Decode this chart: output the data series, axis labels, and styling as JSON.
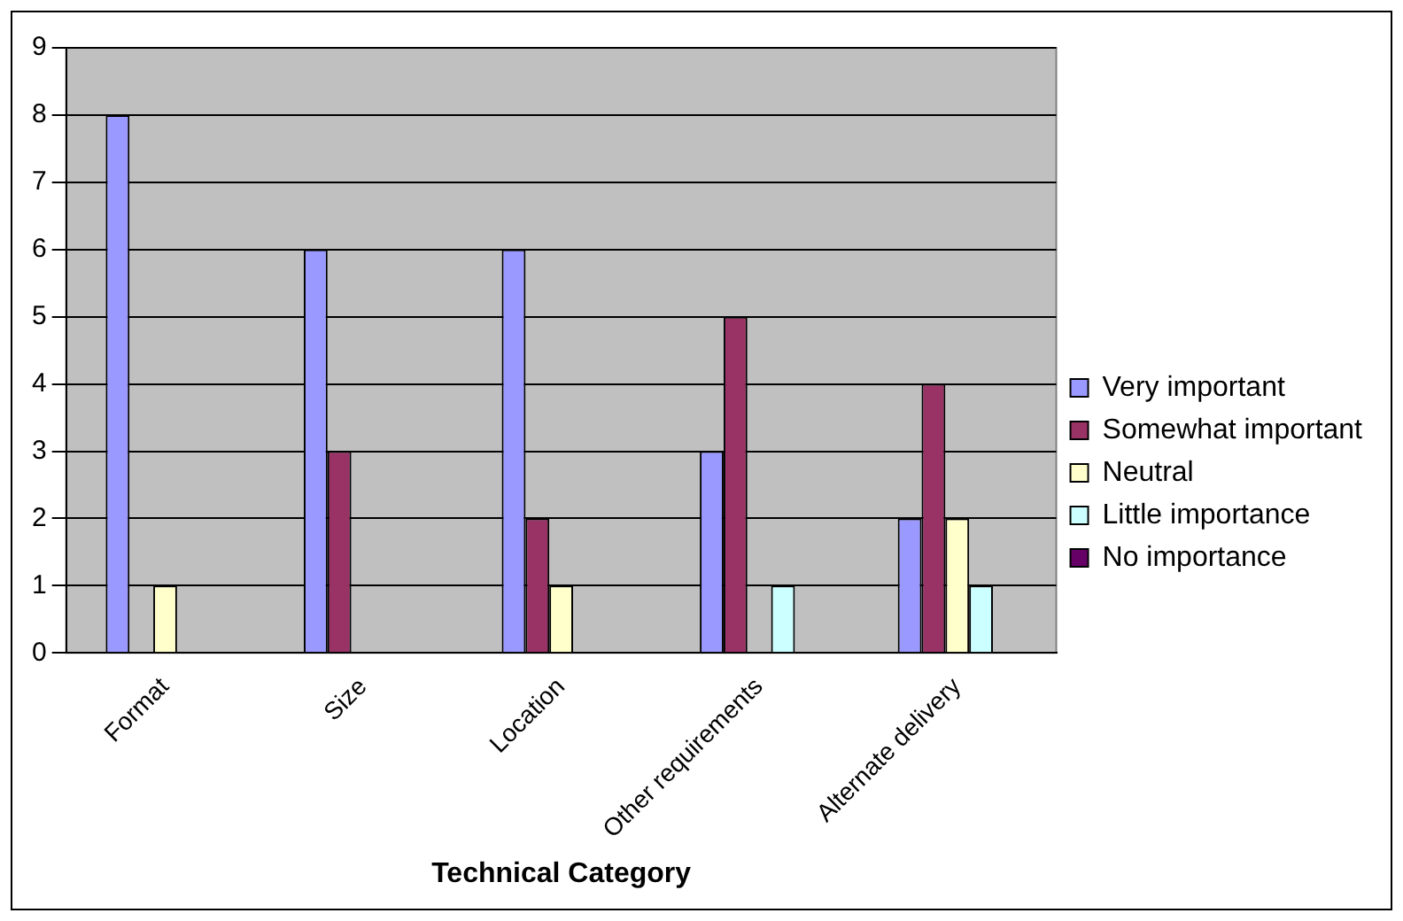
{
  "chart_data": {
    "type": "bar",
    "xlabel": "Technical Category",
    "categories": [
      "Format",
      "Size",
      "Location",
      "Other requirements",
      "Alternate delivery"
    ],
    "series": [
      {
        "name": "Very important",
        "color": "#9999ff",
        "values": [
          8,
          6,
          6,
          3,
          2
        ]
      },
      {
        "name": "Somewhat important",
        "color": "#993366",
        "values": [
          0,
          3,
          2,
          5,
          4
        ]
      },
      {
        "name": "Neutral",
        "color": "#ffffcc",
        "values": [
          1,
          0,
          1,
          0,
          2
        ]
      },
      {
        "name": "Little importance",
        "color": "#ccffff",
        "values": [
          0,
          0,
          0,
          1,
          1
        ]
      },
      {
        "name": "No importance",
        "color": "#660066",
        "values": [
          0,
          0,
          0,
          0,
          0
        ]
      }
    ],
    "ylim": [
      0,
      9
    ],
    "yticks": [
      0,
      1,
      2,
      3,
      4,
      5,
      6,
      7,
      8,
      9
    ],
    "grid": "y",
    "legend": "right"
  }
}
